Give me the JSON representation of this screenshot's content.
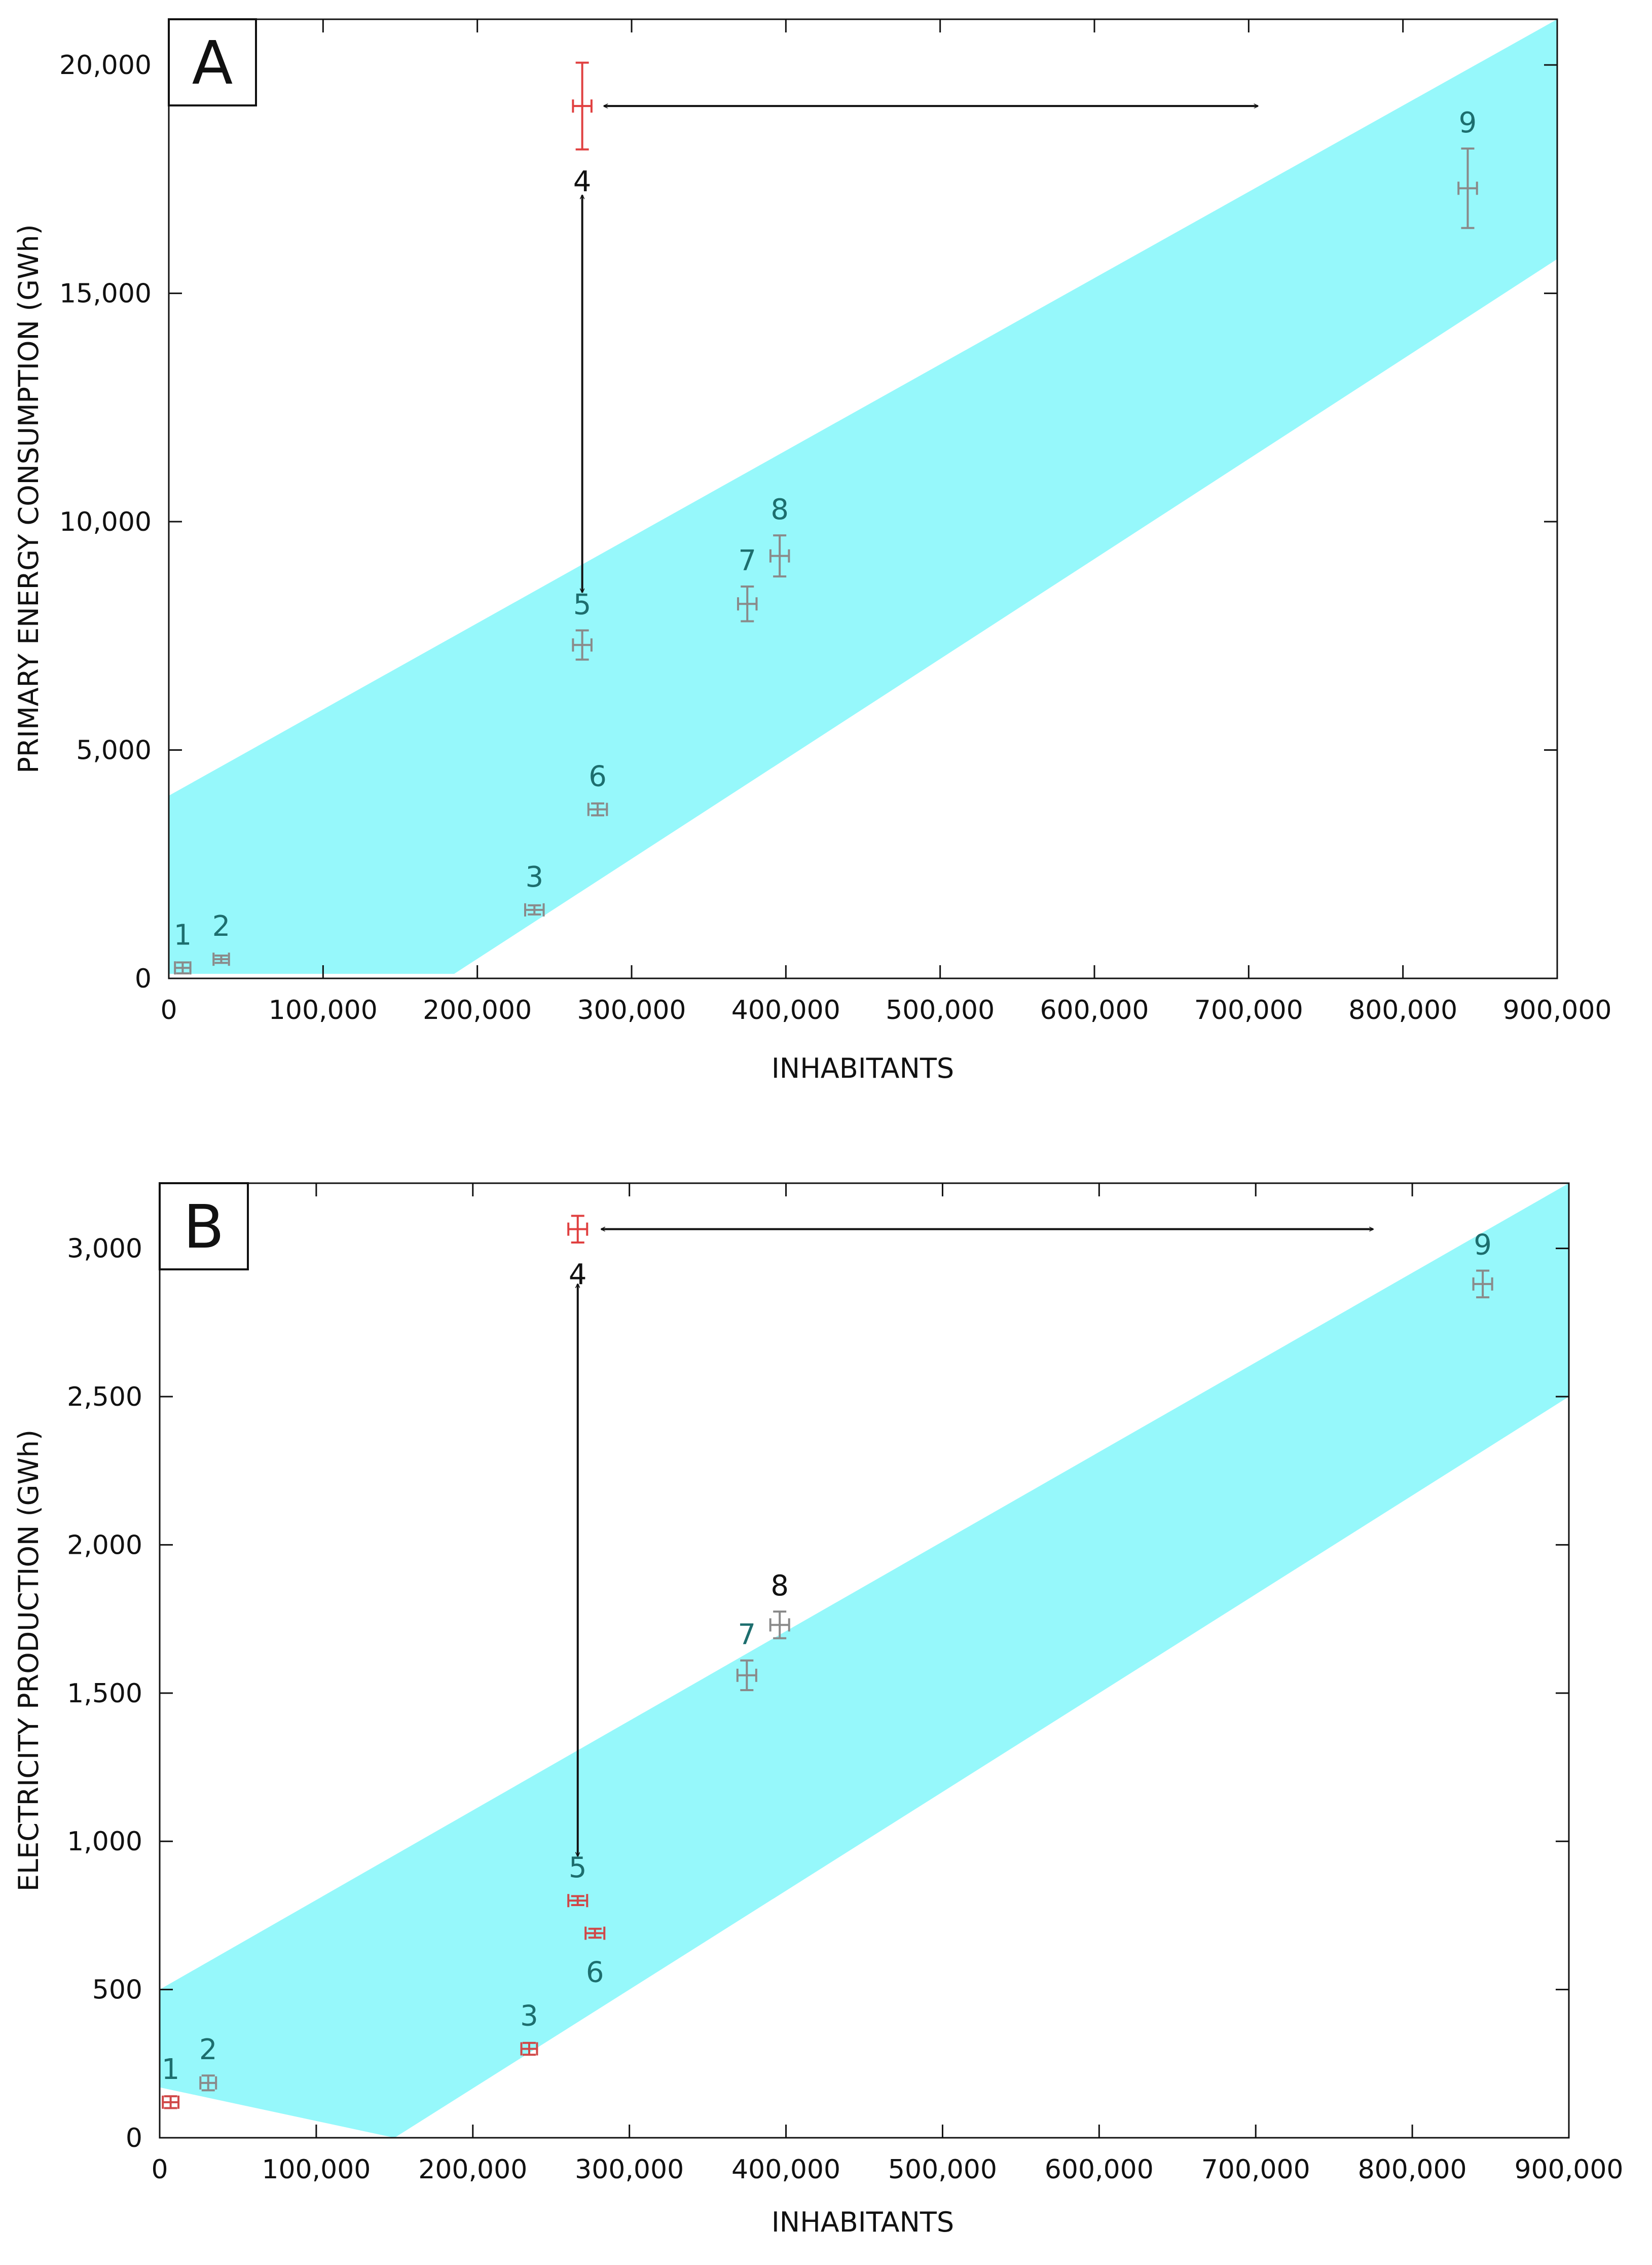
{
  "chart_data": [
    {
      "type": "scatter",
      "panel_label": "A",
      "xlabel": "INHABITANTS",
      "ylabel": "PRIMARY ENERGY CONSUMPTION (GWh)",
      "xlim": [
        0,
        900000
      ],
      "ylim": [
        0,
        21000
      ],
      "x_ticks": [
        0,
        100000,
        200000,
        300000,
        400000,
        500000,
        600000,
        700000,
        800000,
        900000
      ],
      "x_tick_labels": [
        "0",
        "100,000",
        "200,000",
        "300,000",
        "400,000",
        "500,000",
        "600,000",
        "700,000",
        "800,000",
        "900,000"
      ],
      "y_ticks": [
        0,
        5000,
        10000,
        15000,
        20000
      ],
      "y_tick_labels": [
        "0",
        "5,000",
        "10,000",
        "15,000",
        "20,000"
      ],
      "grid": false,
      "band": {
        "color": "#96f8fb",
        "upper": [
          [
            0,
            4000
          ],
          [
            900000,
            21000
          ]
        ],
        "lower": [
          [
            0,
            100
          ],
          [
            185000,
            100
          ],
          [
            900000,
            15750
          ]
        ]
      },
      "points": [
        {
          "label": "1",
          "x": 9000,
          "y": 230,
          "yerr": 120,
          "xerr": 5000,
          "color": "#8a8a8a",
          "label_color": "#1d6e6e",
          "label_pos": "above"
        },
        {
          "label": "2",
          "x": 34000,
          "y": 420,
          "yerr": 80,
          "xerr": 5000,
          "color": "#8a8a8a",
          "label_color": "#1d6e6e",
          "label_pos": "above"
        },
        {
          "label": "3",
          "x": 237000,
          "y": 1500,
          "yerr": 100,
          "xerr": 6000,
          "color": "#8a8a8a",
          "label_color": "#1d6e6e",
          "label_pos": "above"
        },
        {
          "label": "4",
          "x": 268000,
          "y": 19100,
          "yerr": 950,
          "xerr": 6000,
          "color": "#e04040",
          "label_color": "#111111",
          "label_pos": "below"
        },
        {
          "label": "5",
          "x": 268000,
          "y": 7300,
          "yerr": 320,
          "xerr": 6000,
          "color": "#8a8a8a",
          "label_color": "#1d6e6e",
          "label_pos": "above"
        },
        {
          "label": "6",
          "x": 278000,
          "y": 3700,
          "yerr": 130,
          "xerr": 6000,
          "color": "#8a8a8a",
          "label_color": "#1d6e6e",
          "label_pos": "above"
        },
        {
          "label": "7",
          "x": 375000,
          "y": 8200,
          "yerr": 380,
          "xerr": 6000,
          "color": "#8a8a8a",
          "label_color": "#1d6e6e",
          "label_pos": "above"
        },
        {
          "label": "8",
          "x": 396000,
          "y": 9250,
          "yerr": 450,
          "xerr": 6000,
          "color": "#8a8a8a",
          "label_color": "#1d6e6e",
          "label_pos": "above"
        },
        {
          "label": "9",
          "x": 842000,
          "y": 17300,
          "yerr": 870,
          "xerr": 6000,
          "color": "#8a8a8a",
          "label_color": "#1d6e6e",
          "label_pos": "above"
        }
      ],
      "arrows": [
        {
          "from": [
            282000,
            19100
          ],
          "to": [
            706000,
            19100
          ]
        },
        {
          "from": [
            268000,
            17150
          ],
          "to": [
            268000,
            8450
          ]
        }
      ]
    },
    {
      "type": "scatter",
      "panel_label": "B",
      "xlabel": "INHABITANTS",
      "ylabel": "ELECTRICITY PRODUCTION (GWh)",
      "xlim": [
        0,
        900000
      ],
      "ylim": [
        0,
        3220
      ],
      "x_ticks": [
        0,
        100000,
        200000,
        300000,
        400000,
        500000,
        600000,
        700000,
        800000,
        900000
      ],
      "x_tick_labels": [
        "0",
        "100,000",
        "200,000",
        "300,000",
        "400,000",
        "500,000",
        "600,000",
        "700,000",
        "800,000",
        "900,000"
      ],
      "y_ticks": [
        0,
        500,
        1000,
        1500,
        2000,
        2500,
        3000
      ],
      "y_tick_labels": [
        "0",
        "500",
        "1,000",
        "1,500",
        "2,000",
        "2,500",
        "3,000"
      ],
      "grid": false,
      "band": {
        "color": "#96f8fb",
        "upper": [
          [
            0,
            500
          ],
          [
            900000,
            3220
          ]
        ],
        "lower": [
          [
            0,
            170
          ],
          [
            150000,
            0
          ],
          [
            900000,
            2500
          ]
        ]
      },
      "points": [
        {
          "label": "1",
          "x": 7000,
          "y": 120,
          "yerr": 20,
          "xerr": 5000,
          "color": "#d04848",
          "label_color": "#1d6e6e",
          "label_pos": "above"
        },
        {
          "label": "2",
          "x": 31000,
          "y": 185,
          "yerr": 25,
          "xerr": 5000,
          "color": "#8a8a8a",
          "label_color": "#1d6e6e",
          "label_pos": "above"
        },
        {
          "label": "3",
          "x": 236000,
          "y": 300,
          "yerr": 20,
          "xerr": 5000,
          "color": "#d04848",
          "label_color": "#1d6e6e",
          "label_pos": "above"
        },
        {
          "label": "4",
          "x": 267000,
          "y": 3065,
          "yerr": 45,
          "xerr": 6000,
          "color": "#e04040",
          "label_color": "#111111",
          "label_pos": "below"
        },
        {
          "label": "5",
          "x": 267000,
          "y": 800,
          "yerr": 15,
          "xerr": 6000,
          "color": "#d04848",
          "label_color": "#1d6e6e",
          "label_pos": "above"
        },
        {
          "label": "6",
          "x": 278000,
          "y": 690,
          "yerr": 15,
          "xerr": 6000,
          "color": "#d04848",
          "label_color": "#1d6e6e",
          "label_pos": "below"
        },
        {
          "label": "7",
          "x": 375000,
          "y": 1560,
          "yerr": 50,
          "xerr": 6000,
          "color": "#8a8a8a",
          "label_color": "#1d6e6e",
          "label_pos": "above"
        },
        {
          "label": "8",
          "x": 396000,
          "y": 1730,
          "yerr": 45,
          "xerr": 6000,
          "color": "#8a8a8a",
          "label_color": "#111111",
          "label_pos": "above"
        },
        {
          "label": "9",
          "x": 845000,
          "y": 2880,
          "yerr": 45,
          "xerr": 6000,
          "color": "#8a8a8a",
          "label_color": "#1d6e6e",
          "label_pos": "above"
        }
      ],
      "arrows": [
        {
          "from": [
            282000,
            3065
          ],
          "to": [
            775000,
            3065
          ]
        },
        {
          "from": [
            267000,
            2880
          ],
          "to": [
            267000,
            950
          ]
        }
      ]
    }
  ]
}
